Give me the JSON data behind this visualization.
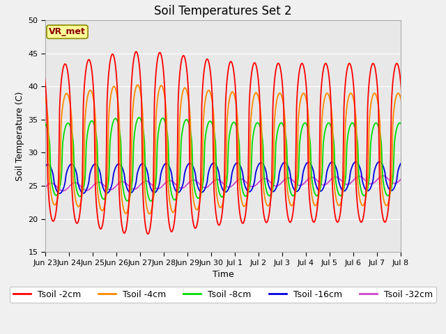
{
  "title": "Soil Temperatures Set 2",
  "xlabel": "Time",
  "ylabel": "Soil Temperature (C)",
  "ylim": [
    15,
    50
  ],
  "yticks": [
    15,
    20,
    25,
    30,
    35,
    40,
    45,
    50
  ],
  "colors": {
    "Tsoil -2cm": "#ff0000",
    "Tsoil -4cm": "#ff8800",
    "Tsoil -8cm": "#00dd00",
    "Tsoil -16cm": "#0000dd",
    "Tsoil -32cm": "#cc44cc"
  },
  "plot_bg": "#e8e8e8",
  "fig_bg": "#f0f0f0",
  "annotation_text": "VR_met",
  "annotation_box_color": "#ffff99",
  "annotation_border_color": "#888800",
  "title_fontsize": 12,
  "axis_fontsize": 9,
  "legend_fontsize": 9,
  "tick_fontsize": 8,
  "line_width": 1.3,
  "mean2": 31.5,
  "amp2": 12.0,
  "mean4": 30.5,
  "amp4": 8.5,
  "mean8": 29.0,
  "amp8": 5.5,
  "mean16": 26.0,
  "amp16": 2.2,
  "mean32": 24.7,
  "amp32": 0.6,
  "peak_hour_2": 14.0,
  "peak_hour_4": 15.5,
  "peak_hour_8": 17.0,
  "peak_hour_16": 20.5,
  "peak_hour_32": 24.0,
  "xlim_start": 1,
  "xlim_end": 16,
  "tick_positions": [
    1,
    2,
    3,
    4,
    5,
    6,
    7,
    8,
    9,
    10,
    11,
    12,
    13,
    14,
    15,
    16
  ],
  "tick_labels": [
    "Jun 23",
    "Jun 24",
    "Jun 25",
    "Jun 26",
    "Jun 27",
    "Jun 28",
    "Jun 29",
    "Jun 30",
    "Jul 1",
    "Jul 2",
    "Jul 3",
    "Jul 4",
    "Jul 5",
    "Jul 6",
    "Jul 7",
    "Jul 8"
  ]
}
